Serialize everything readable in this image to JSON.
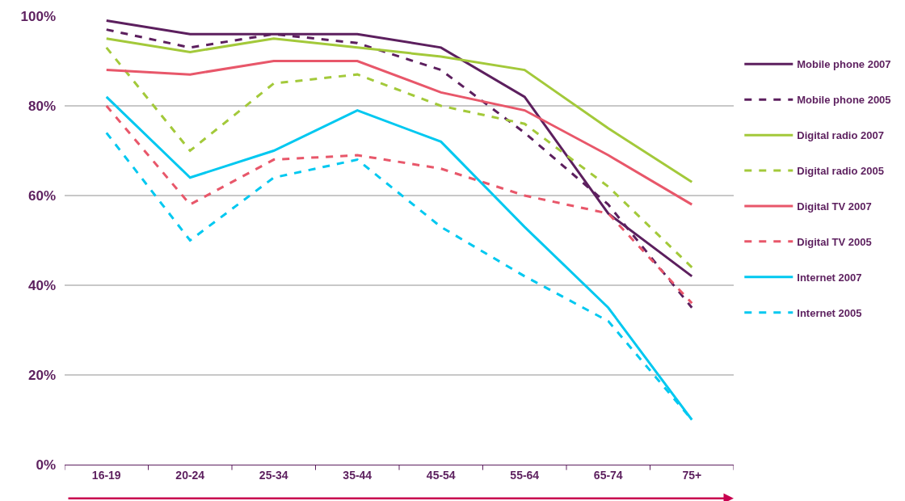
{
  "chart_data": {
    "type": "line",
    "categories": [
      "16-19",
      "20-24",
      "25-34",
      "35-44",
      "45-54",
      "55-64",
      "65-74",
      "75+"
    ],
    "series": [
      {
        "name": "Mobile phone 2007",
        "color": "#5c1f5e",
        "line_style": "solid",
        "values": [
          99,
          96,
          96,
          96,
          93,
          82,
          56,
          42
        ]
      },
      {
        "name": "Mobile phone 2005",
        "color": "#5c1f5e",
        "line_style": "dashed",
        "values": [
          97,
          93,
          96,
          94,
          88,
          74,
          58,
          35
        ]
      },
      {
        "name": "Digital radio 2007",
        "color": "#a3c93a",
        "line_style": "solid",
        "values": [
          95,
          92,
          95,
          93,
          91,
          88,
          75,
          63
        ]
      },
      {
        "name": "Digital radio 2005",
        "color": "#a3c93a",
        "line_style": "dashed",
        "values": [
          93,
          70,
          85,
          87,
          80,
          76,
          62,
          44
        ]
      },
      {
        "name": "Digital TV 2007",
        "color": "#e8576a",
        "line_style": "solid",
        "values": [
          88,
          87,
          90,
          90,
          83,
          79,
          69,
          58
        ]
      },
      {
        "name": "Digital TV 2005",
        "color": "#e8576a",
        "line_style": "dashed",
        "values": [
          80,
          58,
          68,
          69,
          66,
          60,
          56,
          36
        ]
      },
      {
        "name": "Internet 2007",
        "color": "#00c8f0",
        "line_style": "solid",
        "values": [
          82,
          64,
          70,
          79,
          72,
          53,
          35,
          10
        ]
      },
      {
        "name": "Internet 2005",
        "color": "#00c8f0",
        "line_style": "dashed",
        "values": [
          74,
          50,
          64,
          68,
          53,
          42,
          32,
          10
        ]
      }
    ],
    "ylim": [
      0,
      100
    ],
    "yticks": [
      {
        "value": 0,
        "label": "0%"
      },
      {
        "value": 20,
        "label": "20%"
      },
      {
        "value": 40,
        "label": "40%"
      },
      {
        "value": 60,
        "label": "60%"
      },
      {
        "value": 80,
        "label": "80%"
      },
      {
        "value": 100,
        "label": "100%"
      }
    ],
    "grid": "y",
    "legend": "right",
    "marker": "none"
  }
}
